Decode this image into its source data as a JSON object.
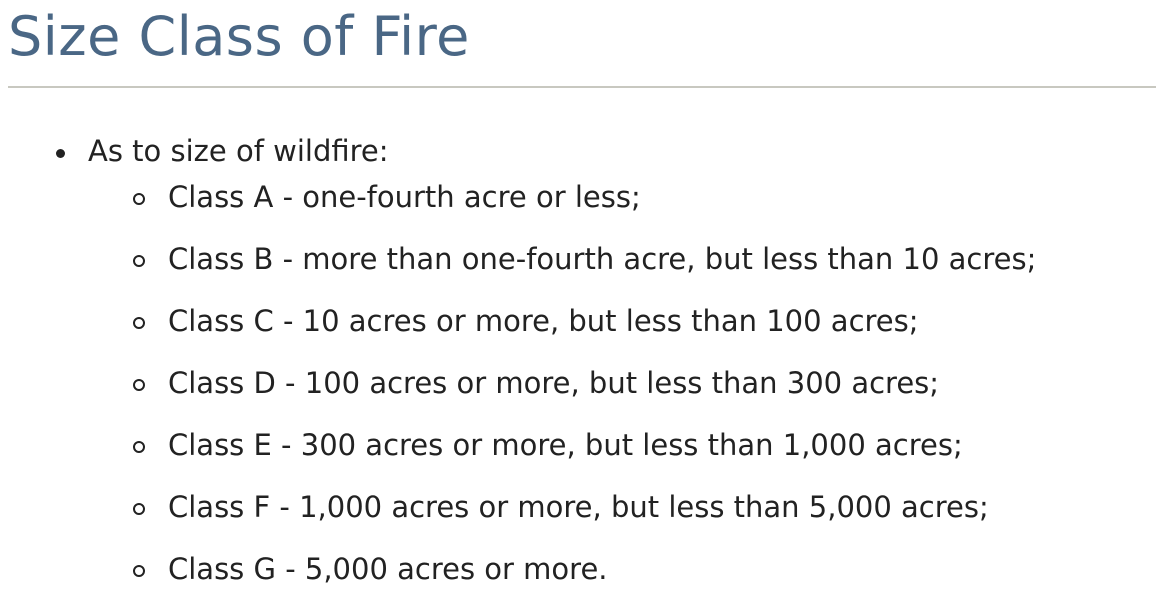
{
  "page": {
    "title": "Size Class of Fire"
  },
  "list": {
    "intro": "As to size of wildfire:",
    "classes": [
      "Class A - one-fourth acre or less;",
      "Class B - more than one-fourth acre, but less than 10 acres;",
      "Class C - 10 acres or more, but less than 100 acres;",
      "Class D - 100 acres or more, but less than 300 acres;",
      "Class E - 300 acres or more, but less than 1,000 acres;",
      "Class F - 1,000 acres or more, but less than 5,000 acres;",
      "Class G - 5,000 acres or more."
    ]
  },
  "colors": {
    "title": "#4a6785",
    "text": "#222222",
    "rule": "#c8c8c0"
  }
}
